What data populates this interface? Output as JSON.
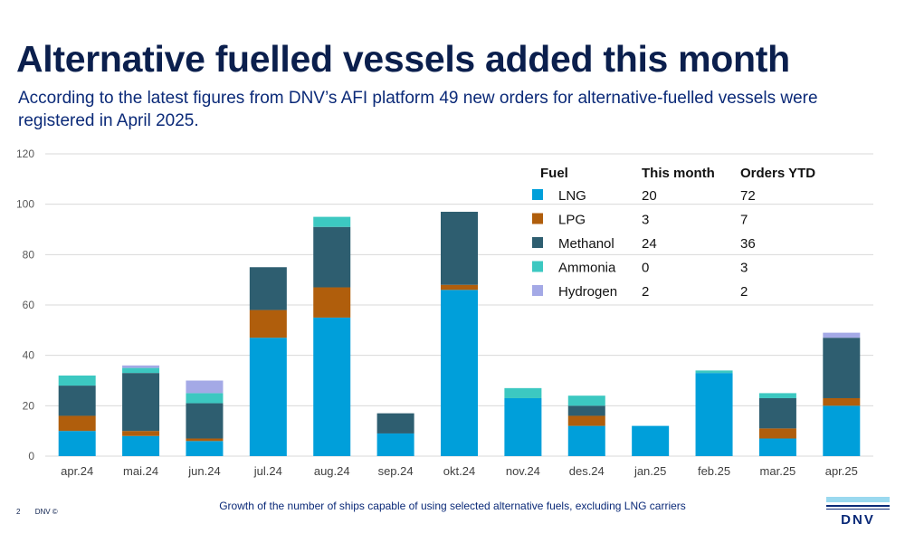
{
  "slide": {
    "title": "Alternative fuelled vessels added this month",
    "subtitle": "According to the latest figures from DNV’s AFI platform 49 new orders for alternative-fuelled vessels were registered in April 2025.",
    "caption": "Growth of the number of ships capable of using selected alternative fuels, excluding LNG carriers",
    "page_number": "2",
    "copyright": "DNV ©",
    "logo_text": "DNV"
  },
  "legend_table": {
    "headers": [
      "Fuel",
      "This month",
      "Orders YTD"
    ],
    "rows": [
      {
        "fuel": "LNG",
        "this_month": "20",
        "ytd": "72",
        "color": "#009fda"
      },
      {
        "fuel": "LPG",
        "this_month": "3",
        "ytd": "7",
        "color": "#b05e0c"
      },
      {
        "fuel": "Methanol",
        "this_month": "24",
        "ytd": "36",
        "color": "#2e5e70"
      },
      {
        "fuel": "Ammonia",
        "this_month": "0",
        "ytd": "3",
        "color": "#3cc8c1"
      },
      {
        "fuel": "Hydrogen",
        "this_month": "2",
        "ytd": "2",
        "color": "#a4a9e6"
      }
    ]
  },
  "chart_data": {
    "type": "bar",
    "stacked": true,
    "title": "",
    "xlabel": "",
    "ylabel": "",
    "ylim": [
      0,
      120
    ],
    "yticks": [
      0,
      20,
      40,
      60,
      80,
      100,
      120
    ],
    "grid": true,
    "categories": [
      "apr.24",
      "mai.24",
      "jun.24",
      "jul.24",
      "aug.24",
      "sep.24",
      "okt.24",
      "nov.24",
      "des.24",
      "jan.25",
      "feb.25",
      "mar.25",
      "apr.25"
    ],
    "series": [
      {
        "name": "LNG",
        "color": "#009fda",
        "values": [
          10,
          8,
          6,
          47,
          55,
          9,
          66,
          23,
          12,
          12,
          33,
          7,
          20
        ]
      },
      {
        "name": "LPG",
        "color": "#b05e0c",
        "values": [
          6,
          2,
          1,
          11,
          12,
          0,
          2,
          0,
          4,
          0,
          0,
          4,
          3
        ]
      },
      {
        "name": "Methanol",
        "color": "#2e5e70",
        "values": [
          12,
          23,
          14,
          17,
          24,
          8,
          29,
          0,
          4,
          0,
          0,
          12,
          24
        ]
      },
      {
        "name": "Ammonia",
        "color": "#3cc8c1",
        "values": [
          4,
          2,
          4,
          0,
          4,
          0,
          0,
          4,
          4,
          0,
          1,
          2,
          0
        ]
      },
      {
        "name": "Hydrogen",
        "color": "#a4a9e6",
        "values": [
          0,
          1,
          5,
          0,
          0,
          0,
          0,
          0,
          0,
          0,
          0,
          0,
          2
        ]
      }
    ]
  }
}
